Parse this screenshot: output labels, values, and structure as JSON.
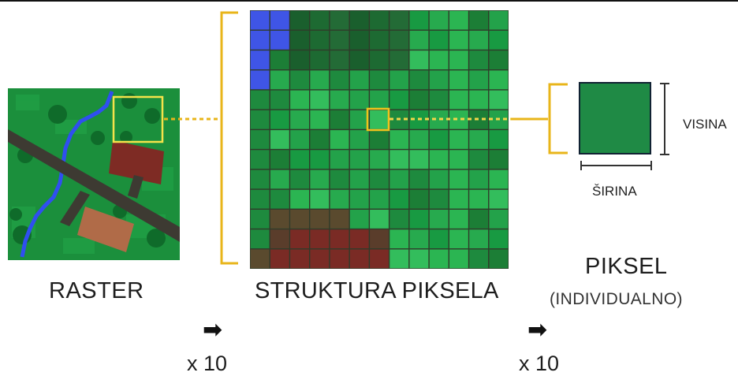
{
  "labels": {
    "raster": "RASTER",
    "structure": "STRUKTURA PIKSELA",
    "pixel": "PIKSEL",
    "individual": "(INDIVIDUALNO)",
    "height": "VISINA",
    "width": "ŠIRINA",
    "multiplier_1": "x 10",
    "multiplier_2": "x 10"
  },
  "icons": {
    "arrow_1": "right-arrow-icon",
    "arrow_2": "right-arrow-icon"
  },
  "colors": {
    "highlight": "#f2c11c",
    "connector": "#e8b51a",
    "pixel_fill": "#1f8a45",
    "water": "#3f55e6",
    "soil": "#7a2b25",
    "border": "#222222"
  }
}
